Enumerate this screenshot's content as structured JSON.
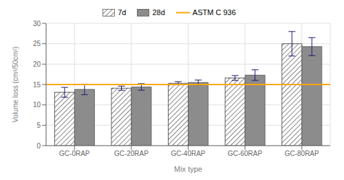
{
  "chart_data": {
    "type": "bar",
    "categories": [
      "GC-0RAP",
      "GC-20RAP",
      "GC-40RAP",
      "GC-60RAP",
      "GC-80RAP"
    ],
    "series": [
      {
        "name": "7d",
        "color": "white",
        "values": [
          13.1,
          14.1,
          15.3,
          16.6,
          25.0
        ],
        "errors": [
          1.2,
          0.5,
          0.4,
          0.6,
          3.0
        ]
      },
      {
        "name": "28d",
        "color": "#8c8c8c",
        "values": [
          13.8,
          14.4,
          15.5,
          17.3,
          24.3
        ],
        "errors": [
          1.3,
          0.8,
          0.6,
          1.3,
          2.2
        ]
      }
    ],
    "hline": {
      "name": "ASTM C 936",
      "value": 15.0,
      "color": "#FFA500"
    },
    "xlabel": "Mix type",
    "ylabel": "Volume loss (cm³/50cm²)",
    "ylim": [
      0,
      30
    ],
    "yticks": [
      0,
      5,
      10,
      15,
      20,
      25,
      30
    ],
    "grid": true,
    "legend": "top"
  }
}
